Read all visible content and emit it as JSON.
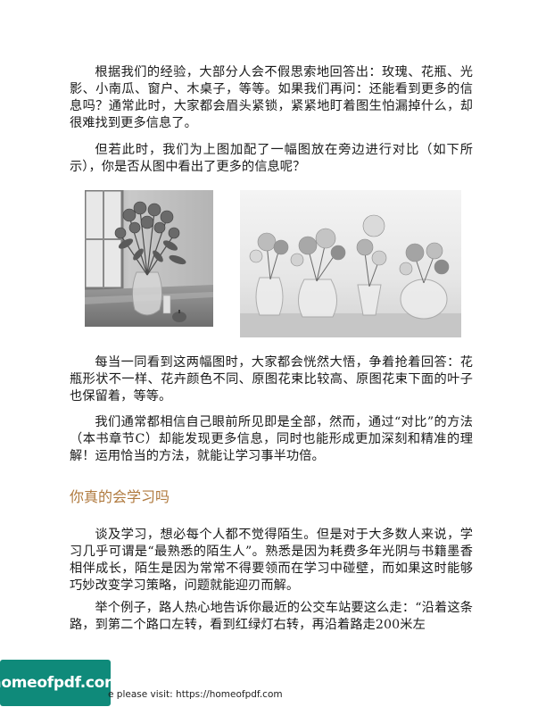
{
  "paragraphs": [
    "根据我们的经验，大部分人会不假思索地回答出：玫瑰、花瓶、光影、小南瓜、窗户、木桌子，等等。如果我们再问：还能看到更多的信息吗？通常此时，大家都会眉头紧锁，紧紧地盯着图生怕漏掉什么，却很难找到更多信息了。",
    "但若此时，我们为上图加配了一幅图放在旁边进行对比（如下所示），你是否从图中看出了更多的信息呢？",
    "每当一同看到这两幅图时，大家都会恍然大悟，争着抢着回答：花瓶形状不一样、花卉颜色不同、原图花束比较高、原图花束下面的叶子也保留着，等等。",
    "我们通常都相信自己眼前所见即是全部，然而，通过“对比”的方法（本书章节C）却能发现更多信息，同时也能形成更加深刻和精准的理解！运用恰当的方法，就能让学习事半功倍。"
  ],
  "section_heading": "你真的会学习吗",
  "section_paragraphs": [
    "谈及学习，想必每个人都不觉得陌生。但是对于大多数人来说，学习几乎可谓是“最熟悉的陌生人”。熟悉是因为耗费多年光阴与书籍墨香相伴成长，陌生是因为常常不得要领而在学习中碰壁，而如果这时能够巧妙改变学习策略，问题就能迎刃而解。",
    "举个例子，路人热心地告诉你最近的公交车站要这么走：“沿着这条路，到第二个路口左转，看到红绿灯右转，再沿着路走200米左"
  ],
  "watermark": {
    "badge": "homeofpdf.com",
    "text": "e please visit: https://homeofpdf.com"
  }
}
